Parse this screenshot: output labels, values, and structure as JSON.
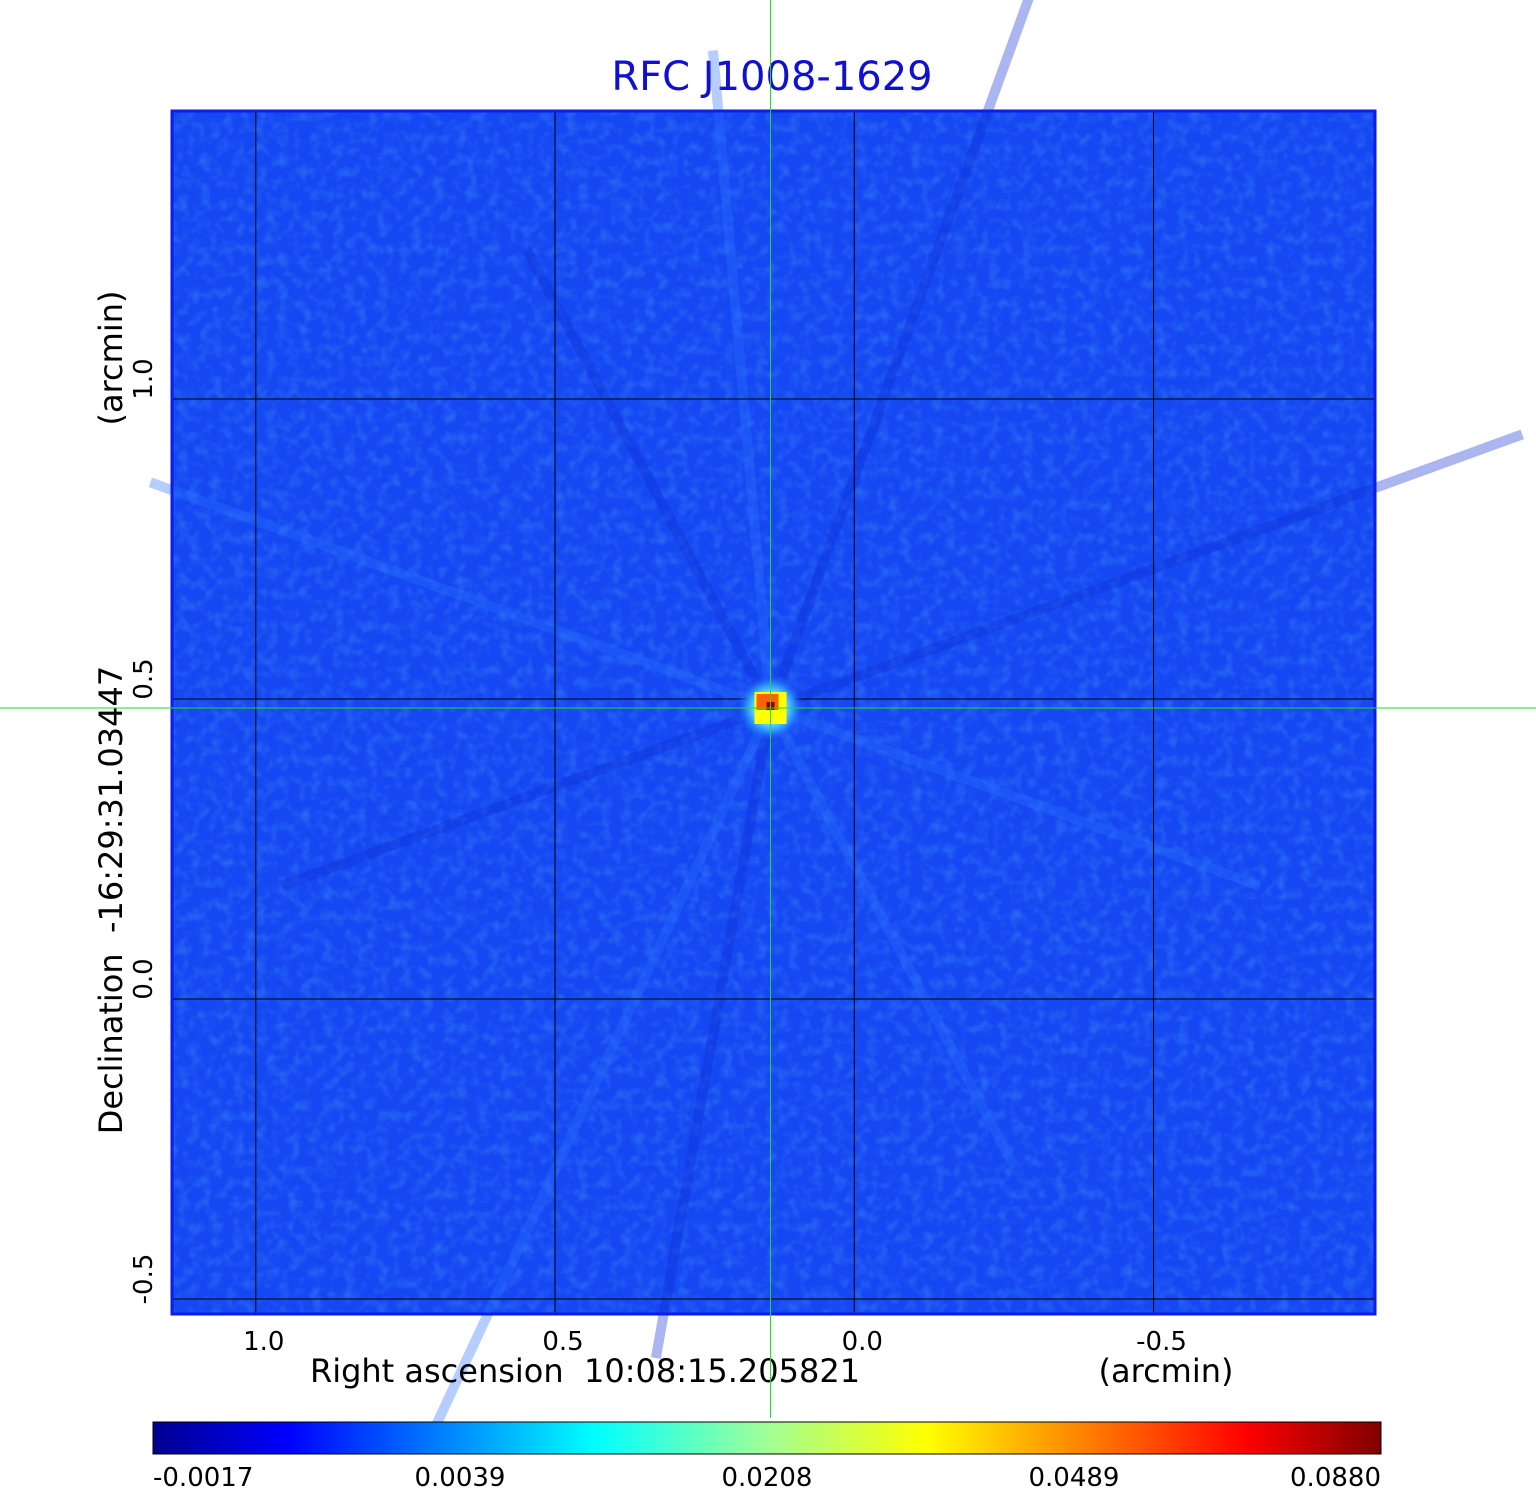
{
  "title": "RFC J1008-1629",
  "colors": {
    "title": "#1010d0",
    "field": "#1547f2",
    "frame": "#0a1ee6",
    "grid": "#000000",
    "crosshair": "#22dd22"
  },
  "chart_data": {
    "type": "heatmap",
    "title": "RFC J1008-1629",
    "xlabel": "Right ascension  10:08:15.205821",
    "xunit": "(arcmin)",
    "ylabel": "Declination  -16:29:31.03447",
    "yunit": "(arcmin)",
    "xlim": [
      1.14,
      -0.87
    ],
    "ylim": [
      -0.525,
      1.48
    ],
    "x_ticks": [
      {
        "value": 1.0,
        "label": "1.0"
      },
      {
        "value": 0.5,
        "label": "0.5"
      },
      {
        "value": 0.0,
        "label": "0.0"
      },
      {
        "value": -0.5,
        "label": "-0.5"
      }
    ],
    "y_ticks": [
      {
        "value": 1.0,
        "label": "1.0"
      },
      {
        "value": 0.5,
        "label": "0.5"
      },
      {
        "value": 0.0,
        "label": "0.0"
      },
      {
        "value": -0.5,
        "label": "-0.5"
      }
    ],
    "grid": true,
    "colormap": "jet",
    "source_peak": {
      "x": 0.14,
      "y": 0.485,
      "value": 0.088
    },
    "crosshair": {
      "x": 0.14,
      "y": 0.485
    },
    "colorbar": {
      "orientation": "horizontal",
      "ticks": [
        {
          "label": "-0.0017",
          "color": "#0000c8"
        },
        {
          "label": "0.0039",
          "color": "#0078ff"
        },
        {
          "label": "0.0208",
          "color": "#a0ff96"
        },
        {
          "label": "0.0489",
          "color": "#ffa000"
        },
        {
          "label": "0.0880",
          "color": "#c80000"
        }
      ]
    }
  }
}
